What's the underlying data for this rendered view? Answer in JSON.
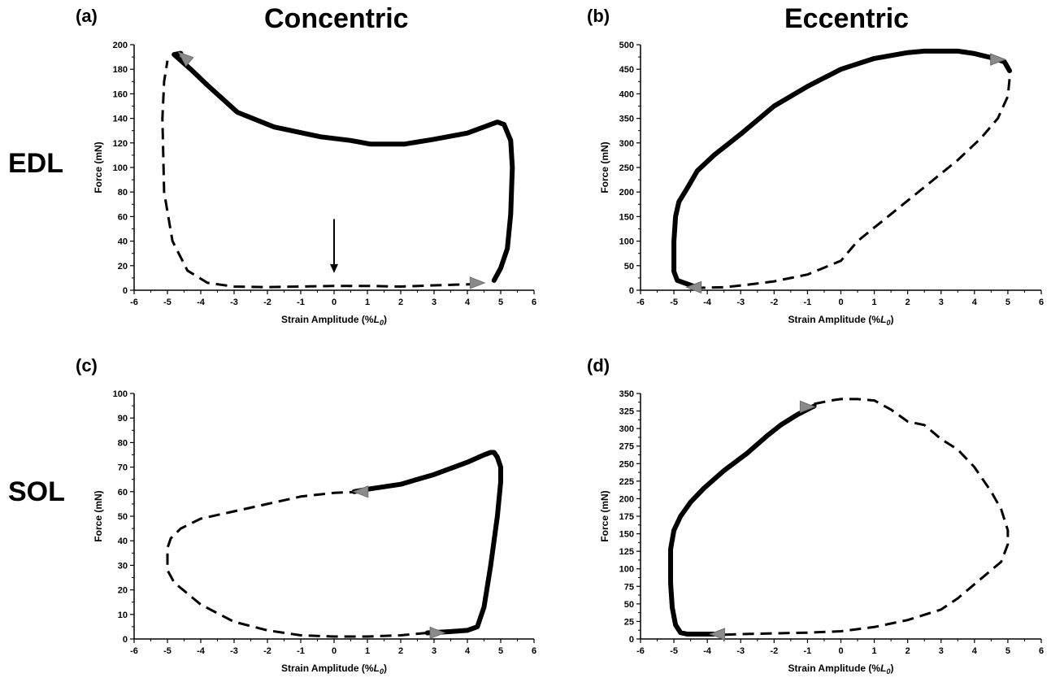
{
  "figure": {
    "col_titles": [
      "Concentric",
      "Eccentric"
    ],
    "row_titles": [
      "EDL",
      "SOL"
    ]
  },
  "chart_data": [
    {
      "panel": "(a)",
      "type": "line",
      "xlabel": "Strain Amplitude (%L0)",
      "xlabel_main": "Strain Amplitude (%",
      "xlabel_italic": "L",
      "xlabel_sub": "0",
      "xlabel_end": ")",
      "ylabel": "Force (mN)",
      "xlim": [
        -6,
        6
      ],
      "ylim": [
        0,
        200
      ],
      "xticks": [
        -6,
        -5,
        -4,
        -3,
        -2,
        -1,
        0,
        1,
        2,
        3,
        4,
        5,
        6
      ],
      "yticks": [
        0,
        20,
        40,
        60,
        80,
        100,
        120,
        140,
        160,
        180,
        200
      ],
      "series": [
        {
          "style": "solid",
          "x": [
            -4.6,
            -4.8,
            -4.3,
            -3.8,
            -2.9,
            -1.8,
            -0.4,
            0.5,
            1.1,
            2.1,
            3.0,
            4.0,
            4.9,
            5.1,
            5.3,
            5.35,
            5.3,
            5.2,
            5.0,
            4.8
          ],
          "y": [
            193,
            192,
            180,
            167,
            145,
            133,
            125,
            122,
            119,
            119,
            123,
            128,
            137,
            135,
            122,
            100,
            62,
            34,
            18,
            8
          ]
        },
        {
          "style": "dashed",
          "x": [
            4.3,
            3.0,
            2.0,
            1.0,
            0.0,
            -1.0,
            -2.0,
            -3.0,
            -3.8,
            -4.4,
            -4.85,
            -5.1,
            -5.15,
            -5.1,
            -5.0
          ],
          "y": [
            5,
            4,
            3,
            3.5,
            3.5,
            3,
            2.5,
            3,
            6,
            16,
            40,
            80,
            140,
            170,
            187
          ]
        }
      ],
      "direction_arrows": [
        {
          "x": -4.5,
          "y": 190,
          "direction": "up-left"
        },
        {
          "x": 4.3,
          "y": 6,
          "direction": "right"
        }
      ],
      "annotation_arrow": {
        "x": 0,
        "y_from": 58,
        "y_to": 14
      }
    },
    {
      "panel": "(b)",
      "type": "line",
      "xlabel": "Strain Amplitude (%L0)",
      "xlabel_main": "Strain Amplitude (%",
      "xlabel_italic": "L",
      "xlabel_sub": "0",
      "xlabel_end": ")",
      "ylabel": "Force (mN)",
      "xlim": [
        -6,
        6
      ],
      "ylim": [
        0,
        500
      ],
      "xticks": [
        -6,
        -5,
        -4,
        -3,
        -2,
        -1,
        0,
        1,
        2,
        3,
        4,
        5,
        6
      ],
      "yticks": [
        0,
        50,
        100,
        150,
        200,
        250,
        300,
        350,
        400,
        450,
        500
      ],
      "series": [
        {
          "style": "solid",
          "x": [
            -4.4,
            -4.9,
            -5.0,
            -5.0,
            -4.95,
            -4.85,
            -4.6,
            -4.3,
            -3.8,
            -3.0,
            -2.0,
            -1.0,
            0.0,
            1.0,
            2.0,
            2.5,
            3.5,
            4.0,
            4.6,
            4.9,
            5.05
          ],
          "y": [
            8,
            20,
            38,
            100,
            150,
            180,
            208,
            243,
            275,
            318,
            375,
            415,
            450,
            472,
            484,
            487,
            487,
            482,
            472,
            465,
            447
          ]
        },
        {
          "style": "dashed",
          "x": [
            5.05,
            5.0,
            4.7,
            4.2,
            3.5,
            2.5,
            1.5,
            0.5,
            0.0,
            -1.0,
            -2.0,
            -2.7,
            -3.5,
            -4.3
          ],
          "y": [
            430,
            395,
            350,
            310,
            265,
            210,
            155,
            100,
            60,
            32,
            18,
            12,
            6,
            5
          ]
        }
      ],
      "direction_arrows": [
        {
          "x": 4.7,
          "y": 470,
          "direction": "right"
        },
        {
          "x": -4.4,
          "y": 6,
          "direction": "left"
        }
      ]
    },
    {
      "panel": "(c)",
      "type": "line",
      "xlabel": "Strain Amplitude (%L0)",
      "xlabel_main": "Strain Amplitude (%",
      "xlabel_italic": "L",
      "xlabel_sub": "0",
      "xlabel_end": ")",
      "ylabel": "Force (mN)",
      "xlim": [
        -6,
        6
      ],
      "ylim": [
        0,
        100
      ],
      "xticks": [
        -6,
        -5,
        -4,
        -3,
        -2,
        -1,
        0,
        1,
        2,
        3,
        4,
        5,
        6
      ],
      "yticks": [
        0,
        10,
        20,
        30,
        40,
        50,
        60,
        70,
        80,
        90,
        100
      ],
      "series": [
        {
          "style": "solid",
          "x": [
            2.8,
            3.5,
            4.0,
            4.3,
            4.5,
            4.7,
            4.9,
            5.0,
            5.0,
            4.9,
            4.8,
            4.7,
            4.5,
            4.0,
            3.0,
            2.0,
            1.0,
            0.6
          ],
          "y": [
            2.5,
            3,
            3.5,
            5,
            13,
            30,
            50,
            64,
            70,
            74,
            76,
            76,
            75,
            72,
            67,
            63,
            61,
            60
          ]
        },
        {
          "style": "dashed",
          "x": [
            0.8,
            0.0,
            -1.0,
            -2.0,
            -3.0,
            -4.0,
            -4.6,
            -4.9,
            -5.0,
            -5.0,
            -4.8,
            -4.0,
            -3.0,
            -2.0,
            -1.0,
            0.0,
            1.0,
            2.0,
            2.8
          ],
          "y": [
            60,
            59.5,
            58,
            55,
            52,
            49,
            45,
            41,
            37,
            28,
            23,
            14,
            7,
            3.5,
            1.5,
            1,
            1,
            1.5,
            2.5
          ]
        }
      ],
      "direction_arrows": [
        {
          "x": 0.8,
          "y": 60,
          "direction": "left"
        },
        {
          "x": 3.1,
          "y": 2.5,
          "direction": "right"
        }
      ]
    },
    {
      "panel": "(d)",
      "type": "line",
      "xlabel": "Strain Amplitude (%L0)",
      "xlabel_main": "Strain Amplitude (%",
      "xlabel_italic": "L",
      "xlabel_sub": "0",
      "xlabel_end": ")",
      "ylabel": "Force (mN)",
      "xlim": [
        -6,
        6
      ],
      "ylim": [
        0,
        350
      ],
      "xticks": [
        -6,
        -5,
        -4,
        -3,
        -2,
        -1,
        0,
        1,
        2,
        3,
        4,
        5,
        6
      ],
      "yticks": [
        0,
        25,
        50,
        75,
        100,
        125,
        150,
        175,
        200,
        225,
        250,
        275,
        300,
        325,
        350
      ],
      "series": [
        {
          "style": "solid",
          "x": [
            -3.6,
            -4.6,
            -4.8,
            -4.95,
            -5.05,
            -5.1,
            -5.1,
            -5.0,
            -4.8,
            -4.5,
            -4.1,
            -3.5,
            -2.8,
            -2.2,
            -1.8,
            -1.3,
            -0.8
          ],
          "y": [
            7,
            7,
            9,
            20,
            45,
            80,
            128,
            155,
            175,
            195,
            215,
            240,
            265,
            290,
            305,
            320,
            332
          ]
        },
        {
          "style": "dashed",
          "x": [
            -0.8,
            -0.3,
            0.0,
            0.5,
            1.0,
            1.5,
            2.0,
            2.5,
            3.0,
            3.5,
            4.0,
            4.5,
            4.8,
            5.0,
            5.0,
            4.8,
            4.5,
            4.0,
            3.5,
            3.0,
            2.0,
            1.0,
            0.0,
            -1.0,
            -2.0,
            -3.0,
            -3.5
          ],
          "y": [
            335,
            340,
            342,
            342,
            340,
            327,
            310,
            305,
            285,
            270,
            245,
            210,
            185,
            155,
            135,
            110,
            98,
            78,
            58,
            42,
            27,
            17,
            11,
            9,
            8,
            7,
            6
          ]
        }
      ],
      "direction_arrows": [
        {
          "x": -1.0,
          "y": 331,
          "direction": "right"
        },
        {
          "x": -3.7,
          "y": 7,
          "direction": "left"
        }
      ]
    }
  ]
}
